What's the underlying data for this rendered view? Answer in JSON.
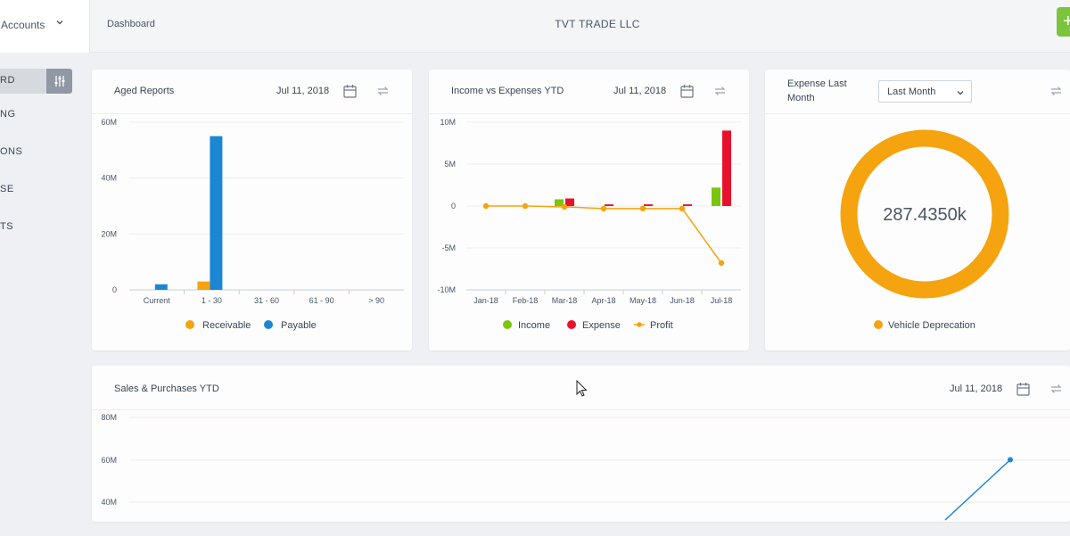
{
  "topbar": {
    "accounts_label": "Accounts",
    "breadcrumb": "Dashboard",
    "company": "TVT TRADE LLC",
    "add_label": "+"
  },
  "sidebar": {
    "items": [
      {
        "label": "RD"
      },
      {
        "label": "NG"
      },
      {
        "label": "ONS"
      },
      {
        "label": "SE"
      },
      {
        "label": "TS"
      }
    ]
  },
  "aged_reports": {
    "title": "Aged Reports",
    "date": "Jul 11, 2018",
    "chart_data": {
      "type": "bar",
      "categories": [
        "Current",
        "1 - 30",
        "31 - 60",
        "61 - 90",
        "> 90"
      ],
      "series": [
        {
          "name": "Receivable",
          "color": "#f5a30f",
          "values": [
            0,
            3,
            0,
            0,
            0
          ]
        },
        {
          "name": "Payable",
          "color": "#1b87d3",
          "values": [
            2,
            55,
            0,
            0,
            0
          ]
        }
      ],
      "y_ticks": [
        "60M",
        "40M",
        "20M",
        "0"
      ],
      "ylim": [
        0,
        60
      ],
      "unit": "M"
    }
  },
  "income_expenses": {
    "title": "Income vs Expenses YTD",
    "date": "Jul 11, 2018",
    "chart_data": {
      "type": "bar",
      "categories": [
        "Jan-18",
        "Feb-18",
        "Mar-18",
        "Apr-18",
        "May-18",
        "Jun-18",
        "Jul-18"
      ],
      "series": [
        {
          "name": "Income",
          "color": "#7ac50e",
          "type": "bar",
          "values": [
            0,
            0,
            0.8,
            0,
            0,
            0,
            2.2
          ]
        },
        {
          "name": "Expense",
          "color": "#e8112d",
          "type": "bar",
          "values": [
            0,
            0,
            0.9,
            0.2,
            0.2,
            0.2,
            9.0
          ]
        },
        {
          "name": "Profit",
          "color": "#f5a30f",
          "type": "line",
          "values": [
            0,
            0,
            -0.1,
            -0.3,
            -0.3,
            -0.3,
            -6.8
          ]
        }
      ],
      "y_ticks": [
        "10M",
        "5M",
        "0",
        "-5M",
        "-10M"
      ],
      "ylim": [
        -10,
        10
      ],
      "unit": "M"
    }
  },
  "expense_last_month": {
    "title_line1": "Expense Last",
    "title_line2": "Month",
    "period": "Last Month",
    "chart_data": {
      "type": "pie",
      "total_label": "287.4350k",
      "slices": [
        {
          "name": "Vehicle Deprecation",
          "value": 287.435,
          "color": "#f5a30f"
        }
      ]
    }
  },
  "sales_purchases": {
    "title": "Sales & Purchases YTD",
    "date": "Jul 11, 2018",
    "chart_data": {
      "type": "line",
      "y_ticks": [
        "80M",
        "60M",
        "40M"
      ],
      "series": [
        {
          "name": "",
          "color": "#1b87d3",
          "values": [
            40,
            60
          ]
        }
      ],
      "ylim": [
        35,
        80
      ],
      "unit": "M"
    }
  }
}
